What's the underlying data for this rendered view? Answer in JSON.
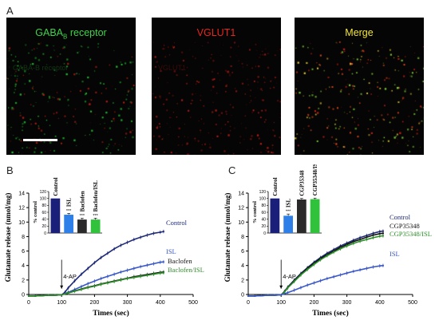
{
  "panel_a": {
    "letter": "A",
    "images": [
      {
        "title": "GABA",
        "title_sub": "B",
        "title_rest": " receptor",
        "ghost_text": "GABA-B receptor",
        "color": "#3fd24a"
      },
      {
        "title": "VGLUT1",
        "title_sub": "",
        "title_rest": "",
        "ghost_text": "VGLUT1",
        "color": "#e8261e"
      },
      {
        "title": "Merge",
        "title_sub": "",
        "title_rest": "",
        "ghost_text": "",
        "color": "#f2e43a"
      }
    ]
  },
  "panel_b": {
    "letter": "B"
  },
  "panel_c": {
    "letter": "C"
  },
  "chart_data": [
    {
      "type": "line",
      "panel": "B",
      "xlabel": "Times (sec)",
      "ylabel": "Glutamate release (nmol/mg)",
      "xlim": [
        0,
        500
      ],
      "ylim": [
        0,
        14
      ],
      "xticks": [
        "0",
        "100",
        "200",
        "300",
        "400",
        "500"
      ],
      "yticks": [
        "0",
        "2",
        "4",
        "6",
        "8",
        "10",
        "12",
        "14"
      ],
      "annotation": "4-AP",
      "annotation_x": 100,
      "series": [
        {
          "name": "Control",
          "color": "#1f2a78",
          "x": [
            0,
            20,
            40,
            60,
            80,
            100,
            110,
            120,
            140,
            160,
            180,
            200,
            220,
            240,
            260,
            280,
            300,
            320,
            340,
            360,
            380,
            400,
            410
          ],
          "y": [
            -0.2,
            -0.2,
            -0.15,
            -0.1,
            -0.1,
            -0.05,
            0.3,
            0.9,
            1.9,
            2.8,
            3.6,
            4.4,
            5.1,
            5.7,
            6.3,
            6.8,
            7.2,
            7.6,
            7.9,
            8.2,
            8.45,
            8.6,
            8.7
          ]
        },
        {
          "name": "ISL",
          "color": "#3a58c8",
          "x": [
            0,
            20,
            40,
            60,
            80,
            100,
            120,
            140,
            160,
            180,
            200,
            220,
            240,
            260,
            280,
            300,
            320,
            340,
            360,
            380,
            400,
            410
          ],
          "y": [
            -0.2,
            -0.2,
            -0.15,
            -0.1,
            -0.1,
            -0.05,
            0.3,
            0.7,
            1.1,
            1.5,
            1.85,
            2.2,
            2.5,
            2.8,
            3.1,
            3.35,
            3.6,
            3.85,
            4.05,
            4.25,
            4.45,
            4.5
          ]
        },
        {
          "name": "Baclofen",
          "color": "#111111",
          "x": [
            0,
            20,
            40,
            60,
            80,
            100,
            120,
            140,
            160,
            180,
            200,
            220,
            240,
            260,
            280,
            300,
            320,
            340,
            360,
            380,
            400,
            410
          ],
          "y": [
            -0.2,
            -0.2,
            -0.15,
            -0.1,
            -0.1,
            -0.05,
            0.2,
            0.5,
            0.75,
            1.0,
            1.2,
            1.45,
            1.65,
            1.85,
            2.05,
            2.25,
            2.45,
            2.6,
            2.75,
            2.9,
            3.05,
            3.1
          ]
        },
        {
          "name": "Baclofen/ISL",
          "color": "#2e8f2a",
          "x": [
            0,
            20,
            40,
            60,
            80,
            100,
            120,
            140,
            160,
            180,
            200,
            220,
            240,
            260,
            280,
            300,
            320,
            340,
            360,
            380,
            400,
            410
          ],
          "y": [
            -0.2,
            -0.2,
            -0.15,
            -0.1,
            -0.1,
            -0.05,
            0.2,
            0.45,
            0.7,
            0.95,
            1.15,
            1.4,
            1.6,
            1.8,
            2.0,
            2.2,
            2.35,
            2.5,
            2.65,
            2.8,
            2.95,
            3.0
          ]
        }
      ],
      "inset": {
        "type": "bar",
        "ylabel": "% control",
        "ylim": [
          0,
          120
        ],
        "yticks": [
          "0",
          "20",
          "40",
          "60",
          "80",
          "100",
          "120"
        ],
        "categories": [
          "Control",
          "ISL",
          "Baclofen",
          "Baclofen/ISL"
        ],
        "values": [
          100,
          53,
          39,
          39
        ],
        "errors": [
          0,
          4,
          4,
          4
        ],
        "colors": [
          "#1a1f7a",
          "#2f7fe8",
          "#2a2a2a",
          "#2fc23a"
        ],
        "stars": [
          "",
          "***",
          "***",
          "***"
        ]
      }
    },
    {
      "type": "line",
      "panel": "C",
      "xlabel": "Times (sec)",
      "ylabel": "Glutamate release (nmol/mg)",
      "xlim": [
        0,
        500
      ],
      "ylim": [
        0,
        14
      ],
      "xticks": [
        "0",
        "100",
        "200",
        "300",
        "400",
        "500"
      ],
      "yticks": [
        "0",
        "2",
        "4",
        "6",
        "8",
        "10",
        "12",
        "14"
      ],
      "annotation": "4-AP",
      "annotation_x": 100,
      "series": [
        {
          "name": "Control",
          "color": "#1f2a78",
          "x": [
            0,
            20,
            40,
            60,
            80,
            100,
            110,
            120,
            140,
            160,
            180,
            200,
            220,
            240,
            260,
            280,
            300,
            320,
            340,
            360,
            380,
            400,
            410
          ],
          "y": [
            -0.2,
            -0.2,
            -0.15,
            -0.1,
            -0.1,
            -0.05,
            0.4,
            1.0,
            2.0,
            2.9,
            3.7,
            4.45,
            5.1,
            5.7,
            6.2,
            6.7,
            7.1,
            7.5,
            7.85,
            8.15,
            8.45,
            8.7,
            8.75
          ]
        },
        {
          "name": "CGP35348",
          "color": "#111111",
          "x": [
            0,
            20,
            40,
            60,
            80,
            100,
            110,
            120,
            140,
            160,
            180,
            200,
            220,
            240,
            260,
            280,
            300,
            320,
            340,
            360,
            380,
            400,
            410
          ],
          "y": [
            -0.2,
            -0.2,
            -0.15,
            -0.1,
            -0.1,
            -0.05,
            0.35,
            0.95,
            1.9,
            2.8,
            3.6,
            4.3,
            4.95,
            5.5,
            6.0,
            6.5,
            6.9,
            7.3,
            7.6,
            7.9,
            8.2,
            8.4,
            8.45
          ]
        },
        {
          "name": "CGP35348/ISL",
          "color": "#2e8f2a",
          "x": [
            0,
            20,
            40,
            60,
            80,
            100,
            110,
            120,
            140,
            160,
            180,
            200,
            220,
            240,
            260,
            280,
            300,
            320,
            340,
            360,
            380,
            400,
            410
          ],
          "y": [
            -0.2,
            -0.2,
            -0.15,
            -0.1,
            -0.1,
            -0.05,
            0.3,
            0.9,
            1.8,
            2.7,
            3.45,
            4.15,
            4.8,
            5.35,
            5.85,
            6.3,
            6.7,
            7.05,
            7.35,
            7.6,
            7.85,
            8.05,
            8.1
          ]
        },
        {
          "name": "ISL",
          "color": "#3a58c8",
          "x": [
            0,
            20,
            40,
            60,
            80,
            100,
            120,
            140,
            160,
            180,
            200,
            220,
            240,
            260,
            280,
            300,
            320,
            340,
            360,
            380,
            400,
            410
          ],
          "y": [
            -0.2,
            -0.2,
            -0.15,
            -0.1,
            -0.1,
            -0.05,
            0.25,
            0.6,
            0.95,
            1.3,
            1.6,
            1.9,
            2.2,
            2.45,
            2.7,
            2.95,
            3.2,
            3.4,
            3.6,
            3.8,
            3.95,
            4.0
          ]
        }
      ],
      "inset": {
        "type": "bar",
        "ylabel": "% control",
        "ylim": [
          0,
          120
        ],
        "yticks": [
          "0",
          "20",
          "40",
          "60",
          "80",
          "100",
          "120"
        ],
        "categories": [
          "Control",
          "ISL",
          "CGP35348",
          "CGP35348/ISL"
        ],
        "values": [
          100,
          50,
          97,
          98
        ],
        "errors": [
          0,
          5,
          3,
          3
        ],
        "colors": [
          "#1a1f7a",
          "#2f7fe8",
          "#2a2a2a",
          "#2fc23a"
        ],
        "stars": [
          "",
          "***",
          "",
          ""
        ]
      }
    }
  ]
}
